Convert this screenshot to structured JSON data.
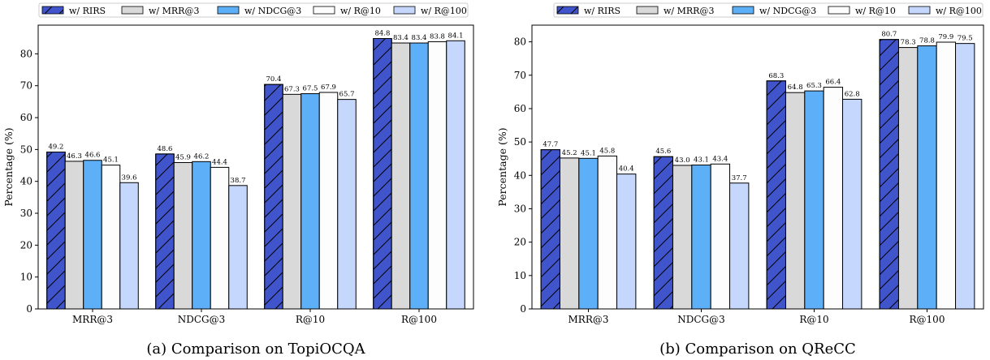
{
  "legend": {
    "items": [
      {
        "label": "w/ RIRS",
        "color": "#4055cc",
        "hatch": true
      },
      {
        "label": "w/ MRR@3",
        "color": "#d9d9d9",
        "hatch": false
      },
      {
        "label": "w/ NDCG@3",
        "color": "#5db0f7",
        "hatch": false
      },
      {
        "label": "w/ R@10",
        "color": "#fdfdfd",
        "hatch": false
      },
      {
        "label": "w/ R@100",
        "color": "#c5d7fd",
        "hatch": false
      }
    ]
  },
  "chart_data": [
    {
      "type": "bar",
      "caption": "(a) Comparison on TopiOCQA",
      "ylabel": "Percentage (%)",
      "ylim": [
        0,
        89
      ],
      "yticks": [
        0,
        10,
        20,
        30,
        40,
        50,
        60,
        70,
        80
      ],
      "categories": [
        "MRR@3",
        "NDCG@3",
        "R@10",
        "R@100"
      ],
      "series": [
        {
          "name": "w/ RIRS",
          "values": [
            49.2,
            48.6,
            70.4,
            84.8
          ]
        },
        {
          "name": "w/ MRR@3",
          "values": [
            46.3,
            45.9,
            67.3,
            83.4
          ]
        },
        {
          "name": "w/ NDCG@3",
          "values": [
            46.6,
            46.2,
            67.5,
            83.4
          ]
        },
        {
          "name": "w/ R@10",
          "values": [
            45.1,
            44.4,
            67.9,
            83.8
          ]
        },
        {
          "name": "w/ R@100",
          "values": [
            39.6,
            38.7,
            65.7,
            84.1
          ]
        }
      ]
    },
    {
      "type": "bar",
      "caption": "(b) Comparison on QReCC",
      "ylabel": "Percentage (%)",
      "ylim": [
        0,
        85
      ],
      "yticks": [
        0,
        10,
        20,
        30,
        40,
        50,
        60,
        70,
        80
      ],
      "categories": [
        "MRR@3",
        "NDCG@3",
        "R@10",
        "R@100"
      ],
      "series": [
        {
          "name": "w/ RIRS",
          "values": [
            47.7,
            45.6,
            68.3,
            80.7
          ]
        },
        {
          "name": "w/ MRR@3",
          "values": [
            45.2,
            43.0,
            64.8,
            78.3
          ]
        },
        {
          "name": "w/ NDCG@3",
          "values": [
            45.1,
            43.1,
            65.3,
            78.8
          ]
        },
        {
          "name": "w/ R@10",
          "values": [
            45.8,
            43.4,
            66.4,
            79.9
          ]
        },
        {
          "name": "w/ R@100",
          "values": [
            40.4,
            37.7,
            62.8,
            79.5
          ]
        }
      ]
    }
  ]
}
